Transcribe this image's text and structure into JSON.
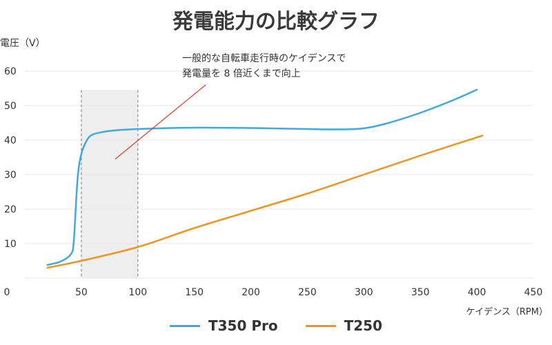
{
  "chart_data": {
    "type": "line",
    "title": "発電能力の比較グラフ",
    "ylabel": "電圧（V）",
    "xlabel": "ケイデンス（RPM）",
    "xlim": [
      0,
      450
    ],
    "ylim": [
      0,
      60
    ],
    "x_ticks": [
      0,
      50,
      100,
      150,
      200,
      250,
      300,
      350,
      400,
      450
    ],
    "y_ticks": [
      10,
      20,
      30,
      40,
      50,
      60
    ],
    "y_grid": true,
    "legend_position": "bottom",
    "highlight_region": {
      "x": [
        50,
        100
      ],
      "y": [
        0,
        54.5
      ]
    },
    "annotation": {
      "lines": [
        "一般的な自転車走行時のケイデンスで",
        "発電量を 8 倍近くまで向上"
      ],
      "arrow_from": [
        160,
        56
      ],
      "arrow_to": [
        80,
        34.5
      ]
    },
    "series": [
      {
        "name": "T350 Pro",
        "color": "#3ea9dc",
        "x": [
          20,
          30,
          38,
          42,
          43,
          44,
          45,
          47,
          50,
          55,
          60,
          70,
          80,
          100,
          150,
          200,
          250,
          280,
          300,
          320,
          350,
          380,
          400
        ],
        "y": [
          3.8,
          4.6,
          6.0,
          7.6,
          9.5,
          14.0,
          20.0,
          30.0,
          36.0,
          40.0,
          41.6,
          42.4,
          42.8,
          43.2,
          43.6,
          43.5,
          43.2,
          43.1,
          43.4,
          44.8,
          47.9,
          51.7,
          54.6
        ]
      },
      {
        "name": "T250",
        "color": "#f0941f",
        "x": [
          20,
          50,
          100,
          150,
          200,
          250,
          300,
          350,
          405
        ],
        "y": [
          3.0,
          5.0,
          9.0,
          14.5,
          19.5,
          24.5,
          30.0,
          35.5,
          41.3
        ]
      }
    ]
  }
}
